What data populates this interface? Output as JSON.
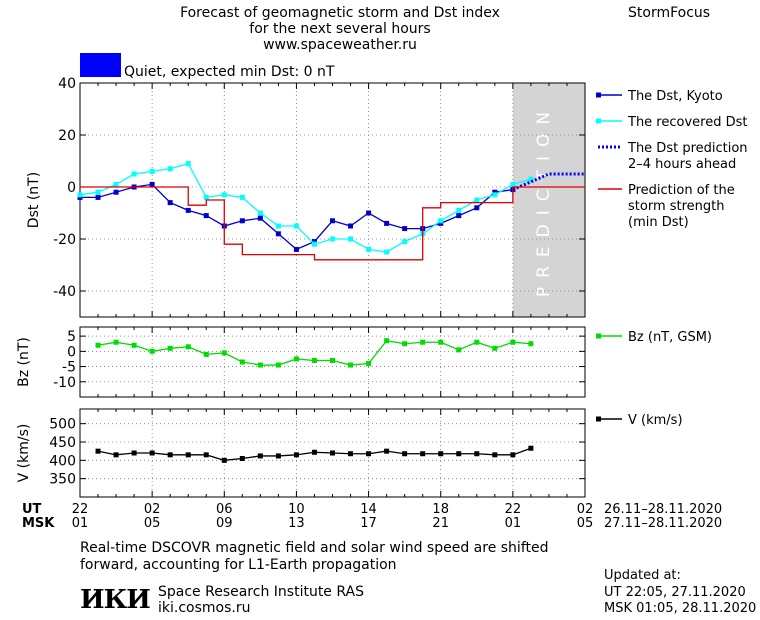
{
  "header": {
    "title_lines": [
      "Forecast of geomagnetic storm and Dst index",
      "for the next several hours",
      "www.spaceweather.ru"
    ],
    "brand": "StormFocus"
  },
  "status": {
    "text": "Quiet, expected min Dst: 0 nT",
    "color": "#0000ff"
  },
  "prediction_label": "PREDICTION",
  "time_axis": {
    "ut_label": "UT",
    "msk_label": "MSK",
    "ut_ticks": [
      "22",
      "02",
      "06",
      "10",
      "14",
      "18",
      "22",
      "02"
    ],
    "msk_ticks": [
      "01",
      "05",
      "09",
      "13",
      "17",
      "21",
      "01",
      "05"
    ],
    "ut_range": "26.11–28.11.2020",
    "msk_range": "27.11–28.11.2020"
  },
  "footer": {
    "note_lines": [
      "Real-time DSCOVR magnetic field and solar wind speed are shifted",
      "forward, accounting for L1-Earth propagation"
    ],
    "institute": "Space Research Institute RAS",
    "url": "iki.cosmos.ru",
    "logo_text": "ИКИ",
    "updated_label": "Updated at:",
    "updated_ut": "UT   22:05, 27.11.2020",
    "updated_msk": "MSK 01:05, 28.11.2020"
  },
  "chart_data": [
    {
      "type": "line",
      "ylabel": "Dst (nT)",
      "ylim": [
        -50,
        40
      ],
      "yticks": [
        40,
        20,
        0,
        -20,
        -40
      ],
      "x_hours_since_22UT": "",
      "xlim": [
        0,
        28
      ],
      "series": [
        {
          "name": "The Dst, Kyoto",
          "color": "#0000cc",
          "marker": "square",
          "x": [
            0,
            1,
            2,
            3,
            4,
            5,
            6,
            7,
            8,
            9,
            10,
            11,
            12,
            13,
            14,
            15,
            16,
            17,
            18,
            19,
            20,
            21,
            22,
            23,
            24
          ],
          "y": [
            -4,
            -4,
            -2,
            0,
            1,
            -6,
            -9,
            -11,
            -15,
            -13,
            -12,
            -18,
            -24,
            -21,
            -13,
            -15,
            -10,
            -14,
            -16,
            -16,
            -14,
            -11,
            -8,
            -2,
            -1
          ]
        },
        {
          "name": "The recovered Dst",
          "color": "#00ffff",
          "marker": "square",
          "x": [
            0,
            1,
            2,
            3,
            4,
            5,
            6,
            7,
            8,
            9,
            10,
            11,
            12,
            13,
            14,
            15,
            16,
            17,
            18,
            19,
            20,
            21,
            22,
            23,
            24,
            25
          ],
          "y": [
            -3,
            -2,
            1,
            5,
            6,
            7,
            9,
            -4,
            -3,
            -4,
            -10,
            -15,
            -15,
            -22,
            -20,
            -20,
            -24,
            -25,
            -21,
            -18,
            -13,
            -9,
            -5,
            -3,
            1,
            3
          ]
        },
        {
          "name": "The Dst prediction\n2–4 hours ahead",
          "color": "#0000ff",
          "style": "dotted",
          "x": [
            24,
            25,
            26,
            27,
            28
          ],
          "y": [
            -1,
            2,
            5,
            5,
            5
          ]
        },
        {
          "name": "Prediction of the\nstorm strength\n(min Dst)",
          "color": "#dd0000",
          "style": "step",
          "x": [
            0,
            5,
            6,
            7,
            8,
            9,
            10,
            11,
            12,
            13,
            14,
            15,
            16,
            17,
            18,
            19,
            20,
            21,
            22,
            23,
            24,
            25,
            26,
            27,
            28
          ],
          "y": [
            0,
            0,
            -7,
            -5,
            -22,
            -26,
            -26,
            -26,
            -26,
            -28,
            -28,
            -28,
            -28,
            -28,
            -28,
            -8,
            -6,
            -6,
            -6,
            -6,
            0,
            0,
            0,
            0,
            0
          ]
        }
      ],
      "prediction_region": [
        24,
        28
      ],
      "grid": true,
      "legend": "right"
    },
    {
      "type": "line",
      "ylabel": "Bz (nT)",
      "ylim": [
        -15,
        8
      ],
      "yticks": [
        5,
        0,
        -5,
        -10
      ],
      "xlim": [
        0,
        28
      ],
      "series": [
        {
          "name": "Bz (nT, GSM)",
          "color": "#00dd00",
          "marker": "square",
          "x": [
            1,
            2,
            3,
            4,
            5,
            6,
            7,
            8,
            9,
            10,
            11,
            12,
            13,
            14,
            15,
            16,
            17,
            18,
            19,
            20,
            21,
            22,
            23,
            24,
            25
          ],
          "y": [
            2,
            3,
            2,
            0,
            1,
            1.5,
            -1,
            -0.5,
            -3.5,
            -4.5,
            -4.5,
            -2.5,
            -3,
            -3,
            -4.5,
            -4,
            3.5,
            2.5,
            3,
            3,
            0.5,
            3,
            1,
            3,
            2.5
          ]
        }
      ],
      "grid": true,
      "legend": "right"
    },
    {
      "type": "line",
      "ylabel": "V (km/s)",
      "ylim": [
        300,
        540
      ],
      "yticks": [
        500,
        450,
        400,
        350
      ],
      "xlim": [
        0,
        28
      ],
      "series": [
        {
          "name": "V (km/s)",
          "color": "#000000",
          "marker": "square",
          "x": [
            1,
            2,
            3,
            4,
            5,
            6,
            7,
            8,
            9,
            10,
            11,
            12,
            13,
            14,
            15,
            16,
            17,
            18,
            19,
            20,
            21,
            22,
            23,
            24,
            25
          ],
          "y": [
            425,
            415,
            420,
            420,
            415,
            415,
            415,
            400,
            405,
            412,
            412,
            415,
            422,
            420,
            418,
            418,
            425,
            418,
            418,
            418,
            418,
            418,
            415,
            415,
            433
          ]
        }
      ],
      "grid": true,
      "legend": "right"
    }
  ]
}
